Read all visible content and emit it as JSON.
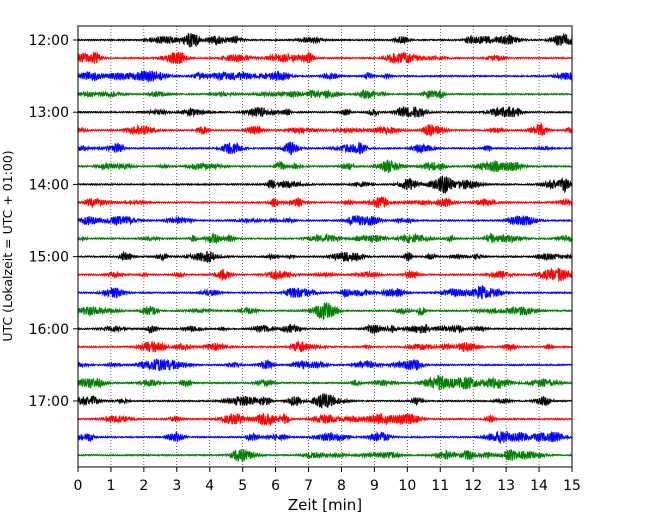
{
  "chart_data": {
    "type": "line",
    "title": "",
    "xlabel": "Zeit  [min]",
    "ylabel": "UTC (Lokalzeit = UTC + 01:00)",
    "xlim": [
      0,
      15
    ],
    "x_ticks": [
      "0",
      "1",
      "2",
      "3",
      "4",
      "5",
      "6",
      "7",
      "8",
      "9",
      "10",
      "11",
      "12",
      "13",
      "14",
      "15"
    ],
    "y_tick_labels": [
      "12:00",
      "13:00",
      "14:00",
      "15:00",
      "16:00",
      "17:00"
    ],
    "grid": "vertical dotted",
    "trace_interval_min": 15,
    "start_time": "12:00",
    "num_traces": 24,
    "trace_colors": [
      "#000000",
      "#ff0000",
      "#0000ff",
      "#008000"
    ],
    "signal": "seismogram (noise), amplitudes not labeled"
  }
}
